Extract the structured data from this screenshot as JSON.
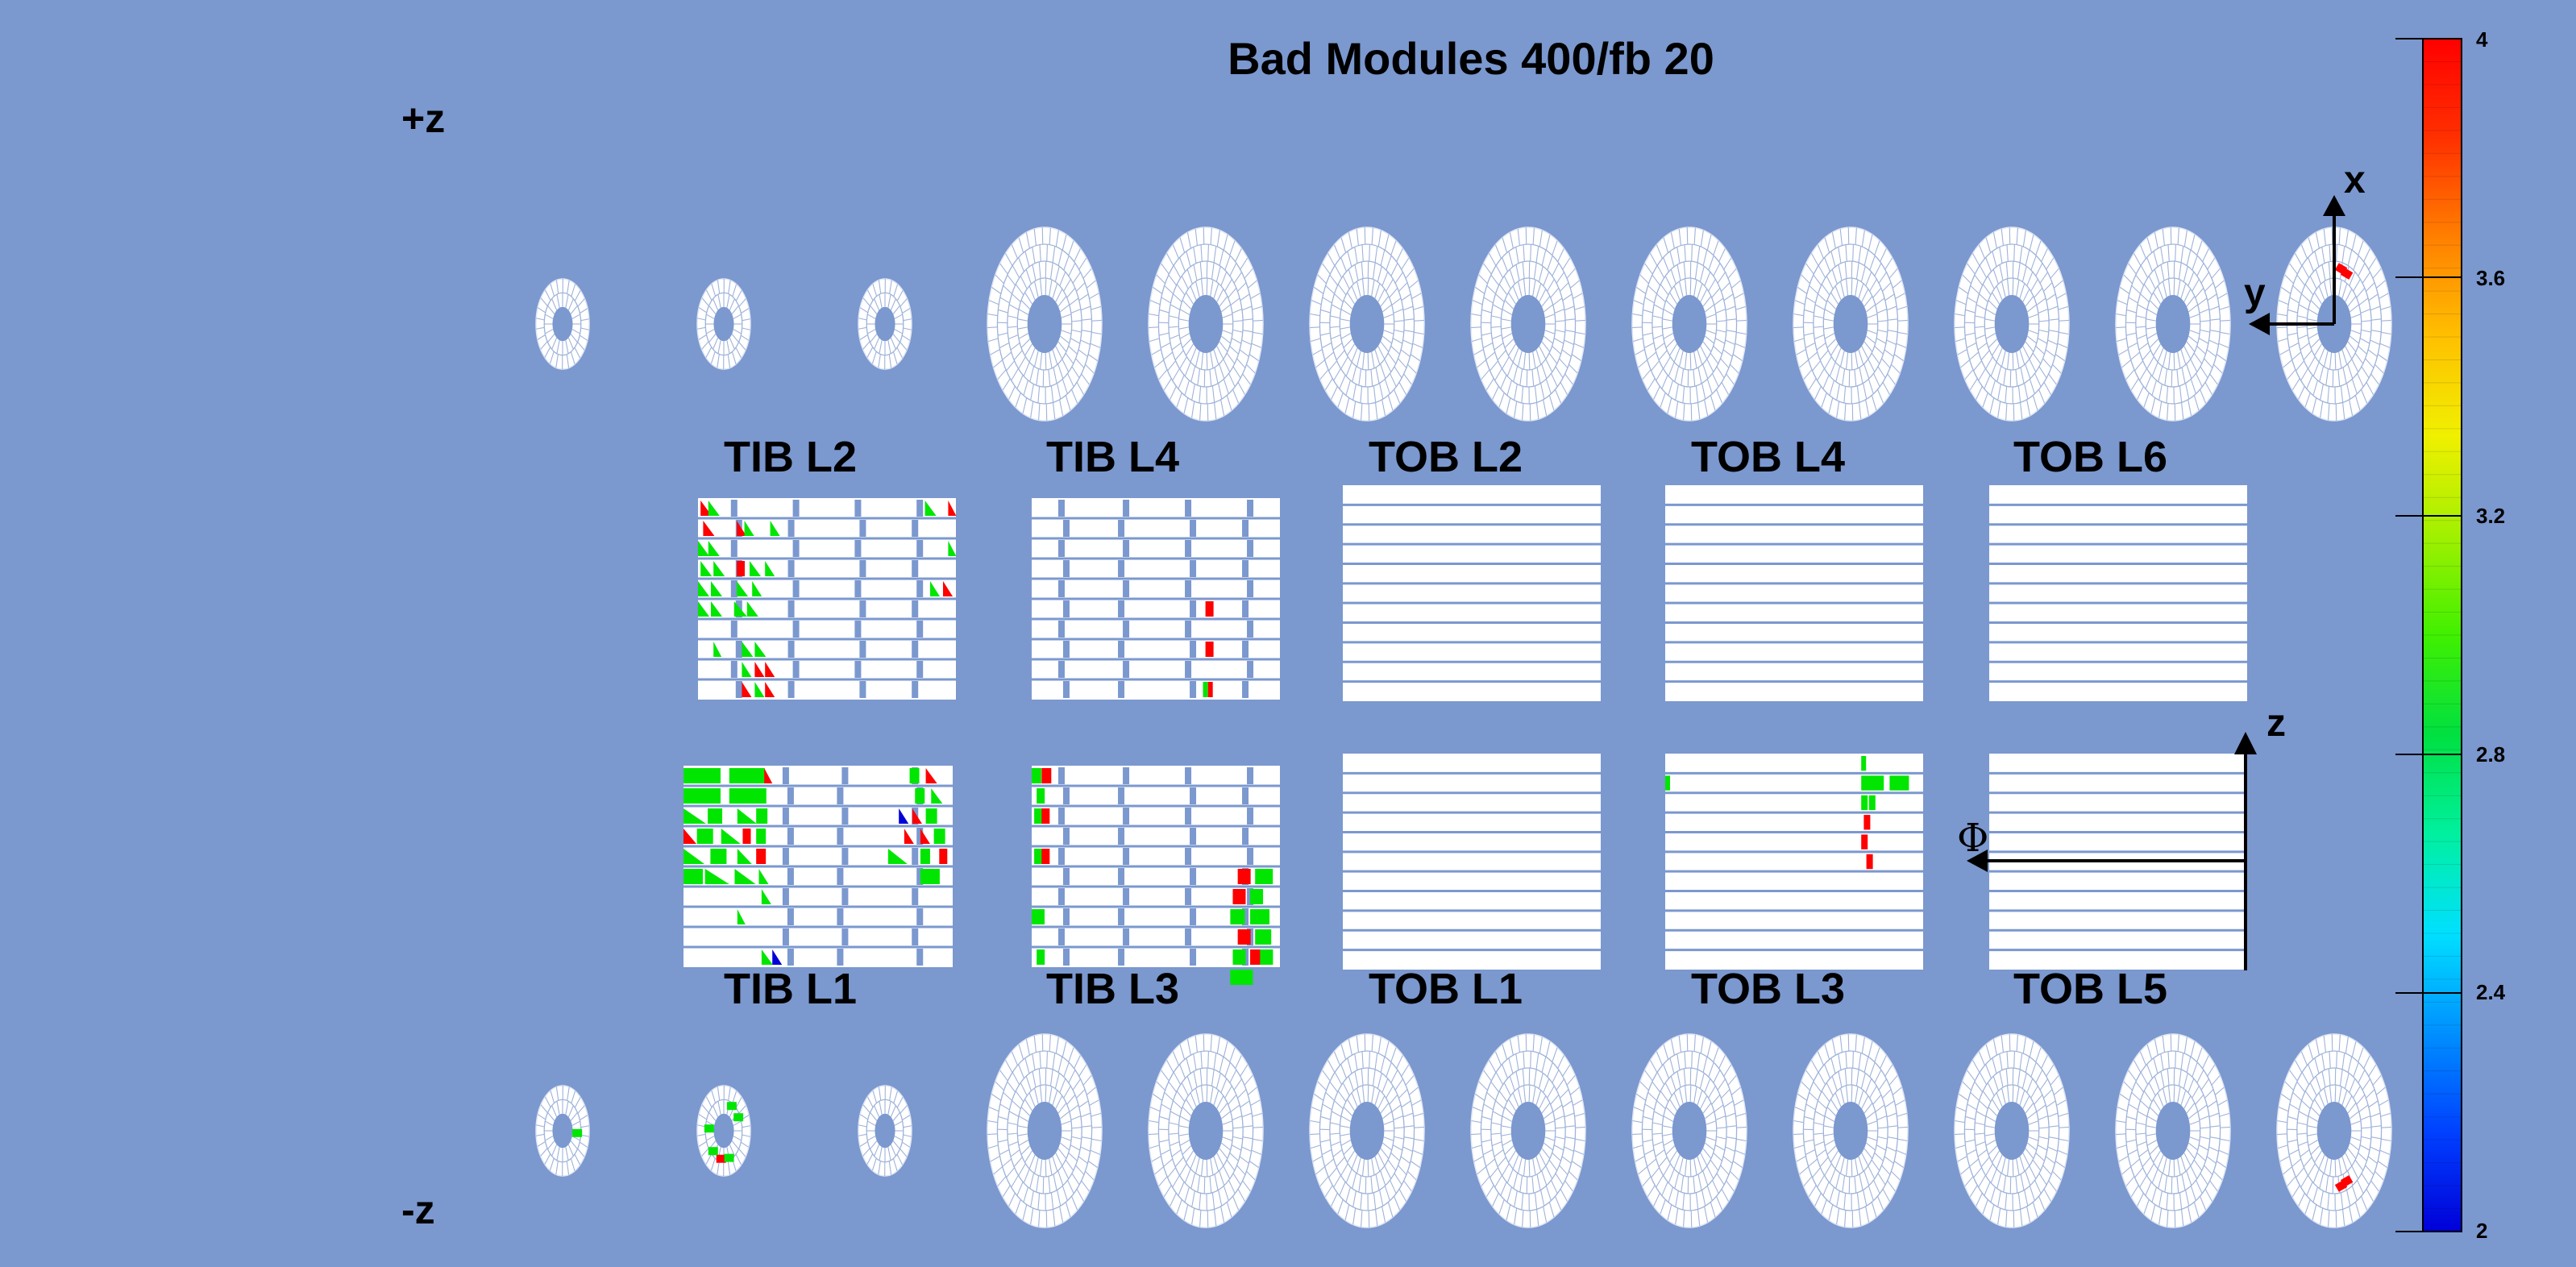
{
  "title": "Bad Modules 400/fb 20",
  "z_labels": {
    "plus": "+z",
    "minus": "-z"
  },
  "barrel_labels_top": [
    "TIB L2",
    "TIB L4",
    "TOB L2",
    "TOB L4",
    "TOB L6"
  ],
  "barrel_labels_bottom": [
    "TIB L1",
    "TIB L3",
    "TOB L1",
    "TOB L3",
    "TOB L5"
  ],
  "axes_endcap": {
    "x": "x",
    "y": "y"
  },
  "axes_barrel": {
    "z": "z",
    "phi": "Φ"
  },
  "colorbar": {
    "min": 2,
    "max": 4,
    "tick_labels": [
      "4",
      "3.6",
      "3.2",
      "2.8",
      "2.4",
      "2"
    ],
    "tick_values": [
      4,
      3.6,
      3.2,
      2.8,
      2.4,
      2
    ],
    "palette": [
      "#0000d8",
      "#0040ff",
      "#0090ff",
      "#00e0ff",
      "#00f0a0",
      "#00e040",
      "#40f000",
      "#a0f000",
      "#f0f000",
      "#ffc000",
      "#ff8000",
      "#ff3000",
      "#ff0000"
    ]
  },
  "colors": {
    "background": "#7b98cf",
    "module": "#ffffff",
    "high": "#ff0000",
    "mid": "#00e600",
    "low": "#0000d8"
  }
}
